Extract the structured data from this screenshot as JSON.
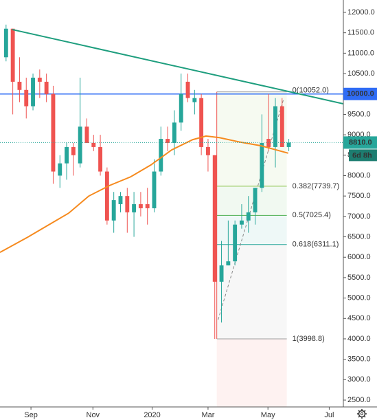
{
  "chart_data": {
    "type": "candlestick",
    "x": [
      0,
      1,
      2,
      3,
      4,
      5,
      6,
      7,
      8,
      9,
      10,
      11,
      12,
      13,
      14,
      15,
      16,
      17,
      18,
      19,
      20,
      21,
      22,
      23,
      24,
      25,
      26,
      27,
      28,
      29,
      30,
      31,
      32,
      33,
      34,
      35,
      36,
      37,
      38,
      39,
      40,
      41,
      42
    ],
    "open": [
      10900,
      11600,
      10300,
      10100,
      9700,
      10400,
      10300,
      10000,
      8000,
      8300,
      8700,
      8300,
      9200,
      8800,
      8700,
      8100,
      6900,
      7300,
      7500,
      7100,
      7300,
      7300,
      7200,
      8100,
      8900,
      8800,
      9300,
      10300,
      9800,
      9900,
      8700,
      8500,
      5400,
      5800,
      5900,
      6800,
      6900,
      7100,
      7700,
      8900,
      8700,
      9700,
      8700
    ],
    "high": [
      11700,
      11600,
      10900,
      10400,
      10500,
      10600,
      10500,
      10200,
      8500,
      8800,
      8800,
      10400,
      9400,
      9000,
      9000,
      8200,
      7600,
      7600,
      7700,
      7600,
      7600,
      7700,
      8400,
      9200,
      9200,
      9600,
      10500,
      10500,
      10100,
      10000,
      8900,
      8500,
      6400,
      6900,
      6900,
      7300,
      7500,
      7700,
      9500,
      10000,
      9900,
      9900,
      8900
    ],
    "low": [
      10800,
      9500,
      9800,
      9400,
      9600,
      9900,
      9800,
      7800,
      7700,
      7900,
      8000,
      8200,
      8800,
      8600,
      8000,
      6800,
      6600,
      7100,
      6600,
      6500,
      7000,
      6800,
      7100,
      8000,
      8600,
      8500,
      9100,
      9800,
      9500,
      8500,
      8100,
      4000,
      4400,
      5800,
      5800,
      6700,
      6600,
      6800,
      7600,
      8600,
      8200,
      8700,
      8600
    ],
    "close": [
      11600,
      10300,
      10100,
      9700,
      10400,
      10300,
      10000,
      8100,
      8300,
      8700,
      8500,
      9200,
      8800,
      8700,
      8100,
      6900,
      7400,
      7500,
      7100,
      7300,
      7200,
      7200,
      8100,
      8900,
      8800,
      9300,
      10000,
      9900,
      9900,
      8700,
      8500,
      5400,
      5800,
      5900,
      6800,
      6900,
      7100,
      7700,
      8800,
      8700,
      9700,
      8700,
      8810
    ],
    "up_color": "#26a69a",
    "down_color": "#ef5350",
    "moving_average": {
      "color": "#f68a1e",
      "x": [
        -0.9,
        3.2,
        6.2,
        9.3,
        12.3,
        15.4,
        18.5,
        21.5,
        24.6,
        27.7,
        29.7,
        31.7,
        34.8,
        37.9,
        41.9
      ],
      "values": [
        6120,
        6490,
        6780,
        7080,
        7500,
        7760,
        7970,
        8260,
        8630,
        8880,
        8970,
        8930,
        8820,
        8730,
        8550
      ]
    },
    "trendline": {
      "color": "#1e9e7e",
      "points": [
        [
          0.9,
          11580
        ],
        [
          50.1,
          9760
        ]
      ]
    },
    "hline": {
      "color": "#2f6cf5",
      "value": 10000,
      "label": "10000.0"
    },
    "fib": {
      "x": [
        31.3,
        41.7
      ],
      "levels": [
        {
          "value": 10052.0,
          "label": "0(10052.0)"
        },
        {
          "value": 7739.7,
          "label": "0.382(7739.7)"
        },
        {
          "value": 7025.4,
          "label": "0.5(7025.4)"
        },
        {
          "value": 6311.1,
          "label": "0.618(6311.1)"
        },
        {
          "value": 3998.8,
          "label": "1(3998.8)"
        }
      ],
      "colors": [
        "#9e9e9e",
        "#8bc34a",
        "#4caf50",
        "#26a69a",
        "#9e9e9e"
      ],
      "diagonal": [
        [
          31.5,
          4470
        ],
        [
          41.2,
          9860
        ]
      ]
    },
    "last_price": {
      "value": 8810,
      "label": "8810.0",
      "countdown": "6d 8h"
    },
    "xlim": [
      -0.9,
      50.1
    ],
    "ylim": [
      2332,
      12303
    ],
    "xticks": [
      {
        "value": 3.7,
        "label": "Sep"
      },
      {
        "value": 12.9,
        "label": "Nov"
      },
      {
        "value": 21.7,
        "label": "2020"
      },
      {
        "value": 30.0,
        "label": "Mar"
      },
      {
        "value": 38.9,
        "label": "May"
      },
      {
        "value": 48.0,
        "label": "Jul"
      }
    ],
    "yticks": [
      {
        "value": 2500,
        "label": "2500.0"
      },
      {
        "value": 3000,
        "label": "3000.0"
      },
      {
        "value": 3500,
        "label": "3500.0"
      },
      {
        "value": 4000,
        "label": "4000.0"
      },
      {
        "value": 4500,
        "label": "4500.0"
      },
      {
        "value": 5000,
        "label": "5000.0"
      },
      {
        "value": 5500,
        "label": "5500.0"
      },
      {
        "value": 6000,
        "label": "6000.0"
      },
      {
        "value": 6500,
        "label": "6500.0"
      },
      {
        "value": 7000,
        "label": "7000.0"
      },
      {
        "value": 7500,
        "label": "7500.0"
      },
      {
        "value": 8000,
        "label": "8000.0"
      },
      {
        "value": 8500,
        "label": "8500.0"
      },
      {
        "value": 9000,
        "label": "9000.0"
      },
      {
        "value": 9500,
        "label": "9500.0"
      },
      {
        "value": 10500,
        "label": "10500.0"
      },
      {
        "value": 11000,
        "label": "11000.0"
      },
      {
        "value": 11500,
        "label": "11500.0"
      },
      {
        "value": 12000,
        "label": "12000.0"
      }
    ]
  }
}
